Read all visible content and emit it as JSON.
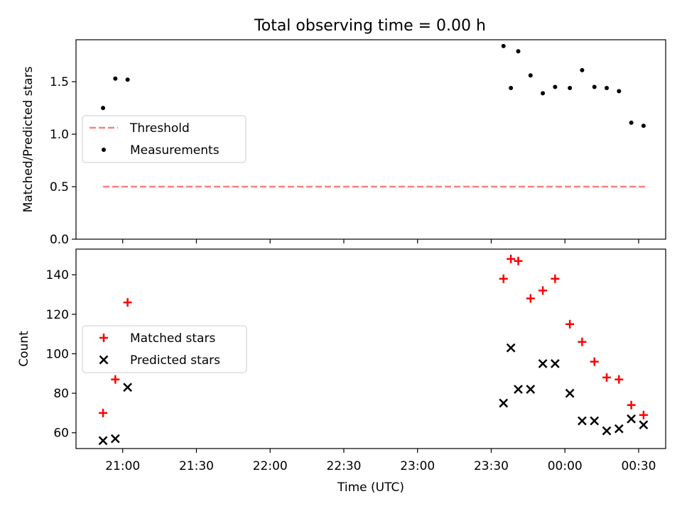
{
  "chart_data": [
    {
      "type": "scatter",
      "title": "Total observing time = 0.00 h",
      "xlabel": "",
      "ylabel": "Matched/Predicted stars",
      "ylim": [
        0,
        1.9
      ],
      "xlim": [
        "20:41",
        "00:41"
      ],
      "yticks": [
        0.0,
        0.5,
        1.0,
        1.5
      ],
      "ytick_labels": [
        "0.0",
        "0.5",
        "1.0",
        "1.5"
      ],
      "legend": {
        "placement": "center-left"
      },
      "series": [
        {
          "name": "Threshold",
          "style": "dashed-line",
          "color": "#ff7f7f",
          "x": [
            "20:52",
            "00:33"
          ],
          "y": [
            0.5,
            0.5
          ]
        },
        {
          "name": "Measurements",
          "style": "dot",
          "color": "#000000",
          "x": [
            "20:52",
            "20:57",
            "21:02",
            "23:35",
            "23:38",
            "23:41",
            "23:46",
            "23:51",
            "23:56",
            "00:02",
            "00:07",
            "00:12",
            "00:17",
            "00:22",
            "00:27",
            "00:32"
          ],
          "y": [
            1.25,
            1.53,
            1.52,
            1.84,
            1.44,
            1.79,
            1.56,
            1.39,
            1.45,
            1.44,
            1.61,
            1.45,
            1.44,
            1.41,
            1.11,
            1.08
          ]
        }
      ]
    },
    {
      "type": "scatter",
      "xlabel": "Time (UTC)",
      "ylabel": "Count",
      "ylim": [
        52,
        153
      ],
      "xlim": [
        "20:41",
        "00:41"
      ],
      "yticks": [
        60,
        80,
        100,
        120,
        140
      ],
      "ytick_labels": [
        "60",
        "80",
        "100",
        "120",
        "140"
      ],
      "xticks": [
        "21:00",
        "21:30",
        "22:00",
        "22:30",
        "23:00",
        "23:30",
        "00:00",
        "00:30"
      ],
      "legend": {
        "placement": "center-left"
      },
      "series": [
        {
          "name": "Matched stars",
          "marker": "plus",
          "color": "#ff0000",
          "x": [
            "20:52",
            "20:57",
            "21:02",
            "23:35",
            "23:38",
            "23:41",
            "23:46",
            "23:51",
            "23:56",
            "00:02",
            "00:07",
            "00:12",
            "00:17",
            "00:22",
            "00:27",
            "00:32"
          ],
          "y": [
            70,
            87,
            126,
            138,
            148,
            147,
            128,
            132,
            138,
            115,
            106,
            96,
            88,
            87,
            74,
            69
          ]
        },
        {
          "name": "Predicted stars",
          "marker": "x",
          "color": "#000000",
          "x": [
            "20:52",
            "20:57",
            "21:02",
            "23:35",
            "23:38",
            "23:41",
            "23:46",
            "23:51",
            "23:56",
            "00:02",
            "00:07",
            "00:12",
            "00:17",
            "00:22",
            "00:27",
            "00:32"
          ],
          "y": [
            56,
            57,
            83,
            75,
            103,
            82,
            82,
            95,
            95,
            80,
            66,
            66,
            61,
            62,
            67,
            64
          ]
        }
      ]
    }
  ]
}
